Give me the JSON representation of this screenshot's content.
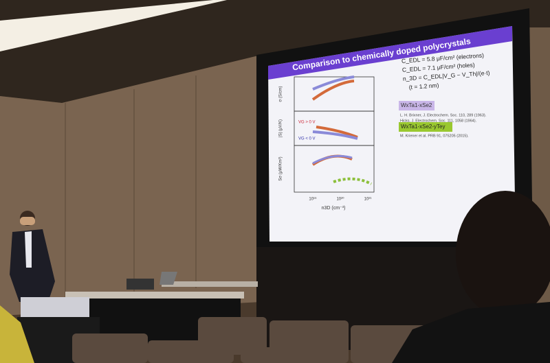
{
  "slide": {
    "title": "Comparison to chemically doped polycrystals",
    "bullets": [
      "C_EDL = 5.8 μF/cm² (electrons)",
      "C_EDL = 7.1 μF/cm² (holes)",
      "n_3D = C_EDL|V_G − V_Th|/(e·t)",
      "(t = 1.2 nm)"
    ],
    "legend": [
      {
        "label": "WxTa1-xSe2",
        "refs": [
          "L. H. Brixner, J. Electrochem. Soc. 110, 289 (1963).",
          "Hicks, J. Electrochem. Soc. 111, 1058 (1964)."
        ]
      },
      {
        "label": "WxTa1-xSe2-yTey",
        "refs": [
          "M. Kriener et al. PRB 91, 075205 (2015)."
        ]
      }
    ],
    "plot": {
      "y_labels": [
        "σ (S/cm)",
        "|S| (μV/K)",
        "Sσ (μW/Km²)"
      ],
      "x_label": "n3D (cm⁻³)",
      "x_ticks": [
        "10¹⁹",
        "10²⁰",
        "10²¹"
      ],
      "annotations": [
        "VG > 0 V",
        "VG < 0 V"
      ]
    }
  }
}
